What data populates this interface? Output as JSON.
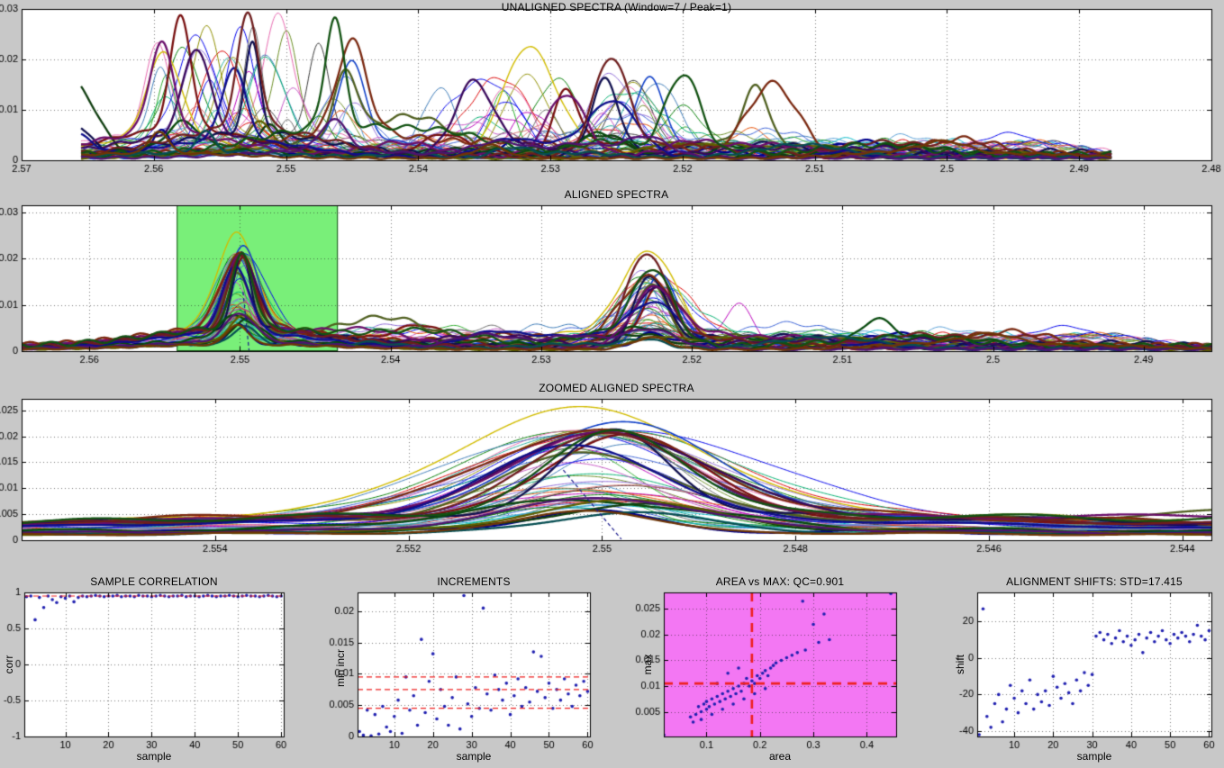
{
  "figure": {
    "bg": "#c8c8c8",
    "plot_bg": "#ffffff",
    "axis_color": "#000000",
    "grid_color": "rgba(40,40,40,0.6)",
    "marker_color": "#2020b0",
    "dashed_color": "#ee2020"
  },
  "spectra": {
    "seed": 7,
    "n_traces": 60,
    "n_thick": 16,
    "thick_lw": 2.3,
    "thin_lw": 1.0,
    "unaligned_center_range": [
      2.5448,
      2.5598
    ],
    "aligned_center": 2.55,
    "aligned_center_jitter": 0.0004,
    "aligned_second_center": 2.5227,
    "aligned_second_jitter": 0.0006,
    "aligned_amp_cap": 0.02,
    "dark_palette": [
      "#00008b",
      "#781010",
      "#0f3d0f",
      "#4f5f1f",
      "#10104f",
      "#7a2810",
      "#084a0e",
      "#5f5f00",
      "#38085a",
      "#6a0e6a",
      "#0e0e8a",
      "#6e1e1e",
      "#125212",
      "#064e52",
      "#4e1270",
      "#6e3606"
    ],
    "bright_palette": [
      "#0000ee",
      "#007d00",
      "#dd0000",
      "#00b8c8",
      "#bb00bb",
      "#8f8f00",
      "#3a3a3a",
      "#e86ab0",
      "#3a62d8",
      "#2fae2f",
      "#e84d00",
      "#8f6ad8",
      "#1fae9e",
      "#d87070",
      "#6b8e23",
      "#00b070",
      "#3a7ab8",
      "#c858c8",
      "#6a6a6a",
      "#58a0d8"
    ],
    "overrides": [
      {
        "index": 58,
        "color": "#d2bc00",
        "lw": 1.4,
        "au": 0.021,
        "aa": 0.025,
        "a2": 0.0205
      },
      {
        "index": 59,
        "color": "#1040c8",
        "lw": 1.6,
        "au": 0.0195,
        "aa": 0.0225,
        "a2": 0.0155
      },
      {
        "index": 20,
        "bump_aligned": [
          2.5168,
          0.0088,
          0.0011
        ]
      },
      {
        "index": 6,
        "bump_aligned": [
          2.5078,
          0.005,
          0.0016
        ]
      },
      {
        "index": 2,
        "bump_unaligned": [
          2.5662,
          0.015,
          0.0025
        ]
      },
      {
        "index": 4,
        "bump_unaligned": [
          2.5668,
          0.008,
          0.002
        ]
      },
      {
        "index": 10,
        "bump_unaligned": [
          2.566,
          0.0045,
          0.0018
        ]
      }
    ]
  },
  "chart_data": [
    {
      "id": "unaligned",
      "type": "line",
      "mode": "u",
      "title": "UNALIGNED SPECTRA (Window=7 / Peak=1)",
      "description": "About 60 overlaid spectra; main peaks scattered between 2.544 and 2.560 (heights up to 0.029), secondary peaks spread 2.51-2.54, low baseline out to 2.4875 where traces end.",
      "xlim": [
        2.57,
        2.48
      ],
      "ylim": [
        0,
        0.03
      ],
      "data_domain": [
        2.5655,
        2.4875
      ],
      "xticks": [
        2.57,
        2.56,
        2.55,
        2.54,
        2.53,
        2.52,
        2.51,
        2.5,
        2.49,
        2.48
      ],
      "xtick_labels": [
        "2.57",
        "2.56",
        "2.55",
        "2.54",
        "2.53",
        "2.52",
        "2.51",
        "2.5",
        "2.49",
        "2.48"
      ],
      "yticks": [
        0,
        0.01,
        0.02,
        0.03
      ],
      "ytick_labels": [
        "0",
        "0.01",
        "0.02",
        "0.03"
      ],
      "grid": true
    },
    {
      "id": "aligned",
      "type": "line",
      "mode": "a",
      "title": "ALIGNED SPECTRA",
      "description": "Same spectra after alignment: primary peak cluster at 2.550 (tallest yellow ~0.028), secondary cluster at 2.5227 (~0.022), small bumps at 2.517 and 2.508; green zoom-window highlight around 2.554-2.544.",
      "xlim": [
        2.5645,
        2.4855
      ],
      "ylim": [
        0,
        0.0315
      ],
      "data_domain": [
        2.5645,
        2.4855
      ],
      "xticks": [
        2.56,
        2.55,
        2.54,
        2.53,
        2.52,
        2.51,
        2.5,
        2.49
      ],
      "xtick_labels": [
        "2.56",
        "2.55",
        "2.54",
        "2.53",
        "2.52",
        "2.51",
        "2.5",
        "2.49"
      ],
      "yticks": [
        0,
        0.01,
        0.02,
        0.03
      ],
      "ytick_labels": [
        "0",
        "0.01",
        "0.02",
        "0.03"
      ],
      "grid": true,
      "highlight": {
        "x0": 2.5542,
        "x1": 2.5435,
        "fill": "#79ef79",
        "edge": "#1a521a"
      },
      "marker_line": {
        "x0": 2.5498,
        "y0": 0.0128,
        "x1": 2.5494,
        "y1": 0.0002,
        "color": "#1a1a8c"
      }
    },
    {
      "id": "zoomed",
      "type": "line",
      "mode": "a",
      "title": "ZOOMED ALIGNED SPECTRA",
      "description": "Zoom of the green window: broad overlapping aligned peaks centered near 2.550, heights 0.005-0.027.",
      "xlim": [
        2.556,
        2.5437
      ],
      "ylim": [
        0,
        0.0272
      ],
      "data_domain": [
        2.556,
        2.5437
      ],
      "xticks": [
        2.554,
        2.552,
        2.55,
        2.548,
        2.546,
        2.544
      ],
      "xtick_labels": [
        "2.554",
        "2.552",
        "2.55",
        "2.548",
        "2.546",
        "2.544"
      ],
      "yticks": [
        0,
        0.005,
        0.01,
        0.015,
        0.02,
        0.025
      ],
      "ytick_labels": [
        "0",
        "0.005",
        "0.01",
        "0.015",
        "0.02",
        "0.025"
      ],
      "grid": true,
      "marker_line": {
        "x0": 2.5504,
        "y0": 0.0135,
        "x1": 2.5498,
        "y1": 0.0002,
        "color": "#1a1a8c"
      }
    },
    {
      "id": "correlation",
      "type": "scatter",
      "title": "SAMPLE CORRELATION",
      "xlabel": "sample",
      "ylabel": "corr",
      "xlim": [
        0.5,
        60.6
      ],
      "ylim": [
        -1,
        1
      ],
      "xticks": [
        10,
        20,
        30,
        40,
        50,
        60
      ],
      "xtick_labels": [
        "10",
        "20",
        "30",
        "40",
        "50",
        "60"
      ],
      "yticks": [
        -1,
        -0.5,
        0,
        0.5,
        1
      ],
      "ytick_labels": [
        "-1",
        "-0.5",
        "0",
        "0.5",
        "1"
      ],
      "grid": true,
      "hlines": [
        0.95
      ],
      "points": {
        "x_auto": true,
        "y": [
          0.94,
          0.95,
          0.62,
          0.93,
          0.79,
          0.95,
          0.9,
          0.86,
          0.94,
          0.92,
          0.95,
          0.87,
          0.93,
          0.95,
          0.94,
          0.95,
          0.96,
          0.95,
          0.94,
          0.95,
          0.95,
          0.96,
          0.94,
          0.95,
          0.95,
          0.94,
          0.96,
          0.95,
          0.95,
          0.94,
          0.95,
          0.96,
          0.95,
          0.94,
          0.95,
          0.95,
          0.96,
          0.94,
          0.95,
          0.95,
          0.94,
          0.95,
          0.96,
          0.95,
          0.94,
          0.95,
          0.95,
          0.96,
          0.95,
          0.94,
          0.95,
          0.96,
          0.95,
          0.95,
          0.94,
          0.95,
          0.96,
          0.95,
          0.94,
          0.95
        ]
      }
    },
    {
      "id": "increments",
      "type": "scatter",
      "title": "INCREMENTS",
      "xlabel": "sample",
      "ylabel": "min incr",
      "xlim": [
        0.5,
        60.6
      ],
      "ylim": [
        0,
        0.023
      ],
      "xticks": [
        10,
        20,
        30,
        40,
        50,
        60
      ],
      "xtick_labels": [
        "10",
        "20",
        "30",
        "40",
        "50",
        "60"
      ],
      "yticks": [
        0,
        0.005,
        0.01,
        0.015,
        0.02
      ],
      "ytick_labels": [
        "0",
        "0.005",
        "0.01",
        "0.015",
        "0.02"
      ],
      "grid": true,
      "hlines": [
        0.0045,
        0.0075,
        0.0095
      ],
      "points": {
        "x_auto": true,
        "y": [
          0.0008,
          0.0002,
          0.0042,
          0.0001,
          0.0035,
          0.0004,
          0.0048,
          0.0015,
          0.0008,
          0.0032,
          0.0058,
          0.0005,
          0.0095,
          0.0042,
          0.0065,
          0.0018,
          0.0155,
          0.0038,
          0.0088,
          0.0132,
          0.0028,
          0.0075,
          0.0048,
          0.0018,
          0.0062,
          0.0095,
          0.0012,
          0.0225,
          0.0052,
          0.0032,
          0.0078,
          0.0045,
          0.0205,
          0.0068,
          0.0042,
          0.0098,
          0.0075,
          0.0058,
          0.0085,
          0.0035,
          0.0065,
          0.0092,
          0.0048,
          0.0078,
          0.0055,
          0.0135,
          0.0072,
          0.0128,
          0.0062,
          0.0085,
          0.0045,
          0.0075,
          0.0058,
          0.0092,
          0.0068,
          0.0048,
          0.0082,
          0.0065,
          0.0088,
          0.0072
        ]
      }
    },
    {
      "id": "area_max",
      "type": "scatter",
      "title": "AREA vs MAX: QC=0.901",
      "xlabel": "area",
      "ylabel": "max",
      "bg": "#f377f3",
      "xlim": [
        0.02,
        0.455
      ],
      "ylim": [
        0.0002,
        0.0282
      ],
      "xticks": [
        0.1,
        0.2,
        0.3,
        0.4
      ],
      "xtick_labels": [
        "0.1",
        "0.2",
        "0.3",
        "0.4"
      ],
      "yticks": [
        0.005,
        0.01,
        0.015,
        0.02,
        0.025
      ],
      "ytick_labels": [
        "0.005",
        "0.01",
        "0.015",
        "0.02",
        "0.025"
      ],
      "grid": true,
      "hlines": [
        0.0105
      ],
      "vlines": [
        0.185
      ],
      "dash_lw": 2.6,
      "points": {
        "x": [
          0.07,
          0.08,
          0.085,
          0.09,
          0.095,
          0.1,
          0.1,
          0.105,
          0.11,
          0.115,
          0.12,
          0.125,
          0.13,
          0.135,
          0.14,
          0.145,
          0.15,
          0.155,
          0.16,
          0.165,
          0.17,
          0.175,
          0.18,
          0.185,
          0.19,
          0.195,
          0.2,
          0.205,
          0.21,
          0.215,
          0.22,
          0.225,
          0.23,
          0.24,
          0.25,
          0.26,
          0.27,
          0.28,
          0.285,
          0.3,
          0.31,
          0.32,
          0.33,
          0.09,
          0.11,
          0.13,
          0.15,
          0.17,
          0.19,
          0.21,
          0.075,
          0.445,
          0.02,
          0.16,
          0.14,
          0.12
        ],
        "y": [
          0.004,
          0.0045,
          0.006,
          0.005,
          0.0065,
          0.0055,
          0.007,
          0.006,
          0.0075,
          0.0065,
          0.008,
          0.007,
          0.0085,
          0.0075,
          0.009,
          0.008,
          0.0095,
          0.0085,
          0.01,
          0.009,
          0.0105,
          0.0115,
          0.01,
          0.011,
          0.0105,
          0.012,
          0.0115,
          0.0125,
          0.013,
          0.012,
          0.0135,
          0.014,
          0.0145,
          0.015,
          0.0155,
          0.016,
          0.0165,
          0.0265,
          0.017,
          0.022,
          0.0185,
          0.024,
          0.019,
          0.0035,
          0.0045,
          0.0055,
          0.0065,
          0.0075,
          0.0085,
          0.0095,
          0.003,
          0.028,
          0.0005,
          0.0135,
          0.0125,
          0.0105
        ]
      }
    },
    {
      "id": "shifts",
      "type": "scatter",
      "title": "ALIGNMENT SHIFTS: STD=17.415",
      "xlabel": "sample",
      "ylabel": "shift",
      "xlim": [
        0.5,
        60.6
      ],
      "ylim": [
        -43,
        36
      ],
      "xticks": [
        10,
        20,
        30,
        40,
        50,
        60
      ],
      "xtick_labels": [
        "10",
        "20",
        "30",
        "40",
        "50",
        "60"
      ],
      "yticks": [
        -40,
        -20,
        0,
        20
      ],
      "ytick_labels": [
        "-40",
        "-20",
        "0",
        "20"
      ],
      "grid": true,
      "points": {
        "x_auto": true,
        "y": [
          -42,
          27,
          -32,
          -38,
          -25,
          -20,
          -35,
          -28,
          -15,
          -22,
          -30,
          -18,
          -25,
          -12,
          -28,
          -20,
          -24,
          -18,
          -26,
          -10,
          -16,
          -22,
          -14,
          -19,
          -25,
          -12,
          -18,
          -8,
          -15,
          -9,
          12,
          14,
          10,
          13,
          8,
          11,
          15,
          9,
          12,
          7,
          10,
          13,
          3,
          11,
          14,
          9,
          12,
          15,
          10,
          8,
          13,
          11,
          14,
          12,
          9,
          13,
          18,
          12,
          10,
          15
        ]
      }
    }
  ]
}
